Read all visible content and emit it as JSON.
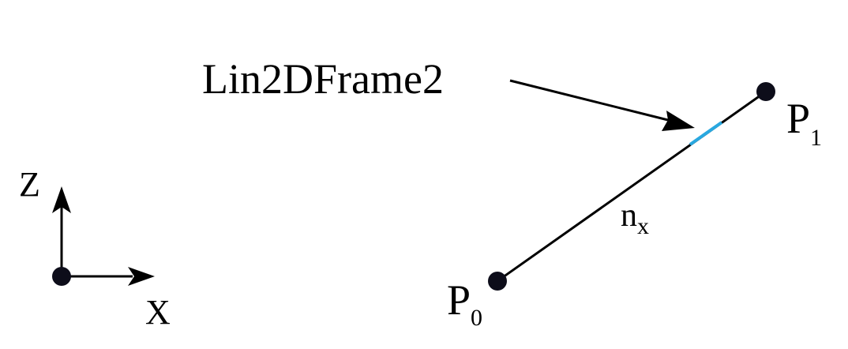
{
  "diagram": {
    "element_label": "Lin2DFrame2",
    "nodes": {
      "p0": {
        "base": "P",
        "sub": "0"
      },
      "p1": {
        "base": "P",
        "sub": "1"
      }
    },
    "member_axis": {
      "base": "n",
      "sub": "x"
    },
    "axes": {
      "z_label": "Z",
      "x_label": "X"
    }
  },
  "colors": {
    "line": "#000000",
    "node": "#0d0d1a",
    "highlight": "#29a8e0"
  }
}
